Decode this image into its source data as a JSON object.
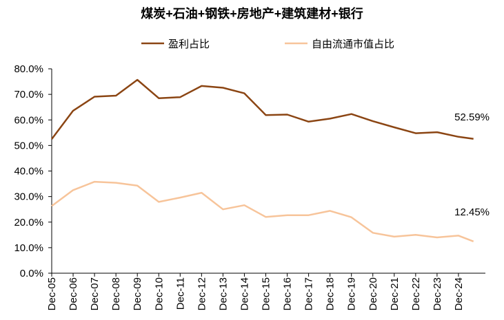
{
  "chart_data": {
    "type": "line",
    "title": "煤炭+石油+钢铁+房地产+建筑建材+银行",
    "xlabel": "",
    "ylabel": "",
    "ylim": [
      0,
      80
    ],
    "y_tick_labels": [
      "0.0%",
      "10.0%",
      "20.0%",
      "30.0%",
      "40.0%",
      "50.0%",
      "60.0%",
      "70.0%",
      "80.0%"
    ],
    "x_tick_labels": [
      "Dec-05",
      "Dec-06",
      "Dec-07",
      "Dec-08",
      "Dec-09",
      "Dec-10",
      "Dec-11",
      "Dec-12",
      "Dec-13",
      "Dec-14",
      "Dec-15",
      "Dec-16",
      "Dec-17",
      "Dec-18",
      "Dec-19",
      "Dec-20",
      "Dec-21",
      "Dec-22",
      "Dec-23",
      "Dec-24"
    ],
    "x": [
      0,
      1,
      2,
      3,
      4,
      5,
      6,
      7,
      8,
      9,
      10,
      11,
      12,
      13,
      14,
      15,
      16,
      17,
      18,
      19,
      19.7
    ],
    "legend_position": "top-center",
    "grid": false,
    "series": [
      {
        "name": "盈利占比",
        "color": "#8B4513",
        "values": [
          52.5,
          63.6,
          69.1,
          69.5,
          75.7,
          68.5,
          68.9,
          73.3,
          72.6,
          70.4,
          61.9,
          62.1,
          59.3,
          60.5,
          62.3,
          59.5,
          57.1,
          54.8,
          55.2,
          53.4,
          52.59
        ],
        "end_label": "52.59%"
      },
      {
        "name": "自由流通市值占比",
        "color": "#F7C49A",
        "values": [
          26.3,
          32.5,
          35.8,
          35.4,
          34.3,
          27.9,
          29.6,
          31.5,
          25.0,
          26.6,
          22.0,
          22.7,
          22.7,
          24.4,
          21.9,
          15.8,
          14.3,
          15.0,
          14.0,
          14.7,
          12.45
        ],
        "end_label": "12.45%"
      }
    ]
  }
}
